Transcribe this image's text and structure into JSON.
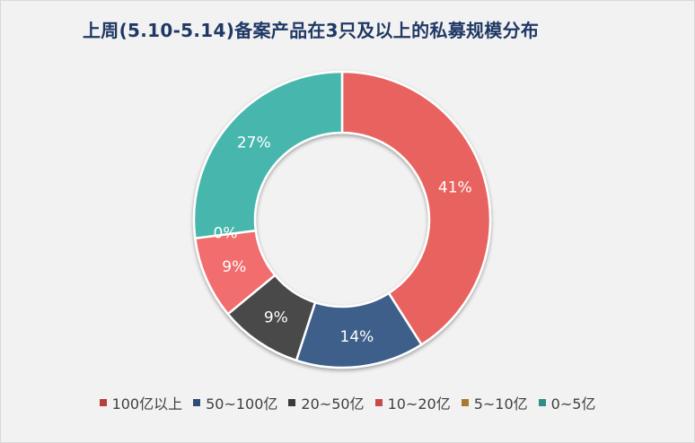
{
  "chart_data": {
    "type": "pie",
    "variant": "donut",
    "title": "上周(5.10-5.14)备案产品在3只及以上的私募规模分布",
    "categories": [
      "100亿以上",
      "50~100亿",
      "20~50亿",
      "10~20亿",
      "5~10亿",
      "0~5亿"
    ],
    "values": [
      41,
      14,
      9,
      9,
      0,
      27
    ],
    "data_labels": [
      "41%",
      "14%",
      "9%",
      "9%",
      "0%",
      "27%"
    ],
    "unit": "%",
    "colors": [
      "#e8635f",
      "#3c5f89",
      "#4a4a4a",
      "#f26d6d",
      "#b8863b",
      "#47b7ad"
    ],
    "legend_colors": [
      "#b4413b",
      "#2f4d73",
      "#3a3a3a",
      "#c84b4b",
      "#a8792e",
      "#2f8f86"
    ],
    "legend_position": "bottom"
  }
}
